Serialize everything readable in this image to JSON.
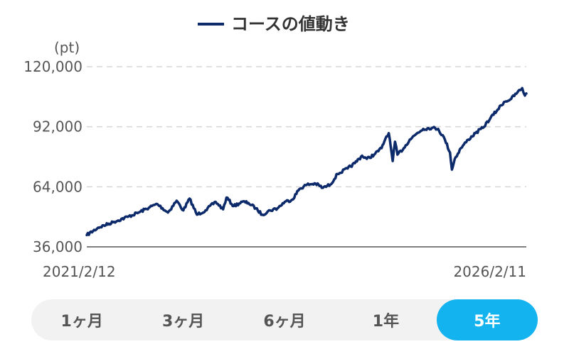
{
  "chart_data": {
    "type": "line",
    "legend": {
      "label": "コースの値動き",
      "placement": "top-center"
    },
    "y_unit": "(pt)",
    "ylim": [
      36000,
      120000
    ],
    "y_ticks": [
      {
        "value": 120000,
        "label": "120,000"
      },
      {
        "value": 92000,
        "label": "92,000"
      },
      {
        "value": 64000,
        "label": "64,000"
      },
      {
        "value": 36000,
        "label": "36,000"
      }
    ],
    "x_labels": {
      "start": "2021/2/12",
      "end": "2026/2/11"
    },
    "grid": "horizontal dashed",
    "series": [
      {
        "name": "コースの値動き",
        "color": "#0d2a6b",
        "points": [
          [
            "2021-02-12",
            41500
          ],
          [
            "2021-04-01",
            45000
          ],
          [
            "2021-06-01",
            47500
          ],
          [
            "2021-08-01",
            50000
          ],
          [
            "2021-09-15",
            52000
          ],
          [
            "2021-11-01",
            54500
          ],
          [
            "2021-12-01",
            56000
          ],
          [
            "2022-01-15",
            52000
          ],
          [
            "2022-02-20",
            57500
          ],
          [
            "2022-03-20",
            53000
          ],
          [
            "2022-04-15",
            58500
          ],
          [
            "2022-05-15",
            51000
          ],
          [
            "2022-06-20",
            53000
          ],
          [
            "2022-08-01",
            57000
          ],
          [
            "2022-09-01",
            53500
          ],
          [
            "2022-09-15",
            59000
          ],
          [
            "2022-10-15",
            55000
          ],
          [
            "2022-11-20",
            57000
          ],
          [
            "2022-12-15",
            56500
          ],
          [
            "2023-01-15",
            54000
          ],
          [
            "2023-02-10",
            51000
          ],
          [
            "2023-03-15",
            53000
          ],
          [
            "2023-04-15",
            54000
          ],
          [
            "2023-05-15",
            57000
          ],
          [
            "2023-06-15",
            58000
          ],
          [
            "2023-07-15",
            63000
          ],
          [
            "2023-08-15",
            65000
          ],
          [
            "2023-09-20",
            65500
          ],
          [
            "2023-10-20",
            63500
          ],
          [
            "2023-11-20",
            65000
          ],
          [
            "2023-12-20",
            70000
          ],
          [
            "2024-01-31",
            72500
          ],
          [
            "2024-03-01",
            75000
          ],
          [
            "2024-03-31",
            78500
          ],
          [
            "2024-04-20",
            77000
          ],
          [
            "2024-05-20",
            79000
          ],
          [
            "2024-06-20",
            82000
          ],
          [
            "2024-07-10",
            87500
          ],
          [
            "2024-07-20",
            89000
          ],
          [
            "2024-08-05",
            76000
          ],
          [
            "2024-08-15",
            85000
          ],
          [
            "2024-08-25",
            79000
          ],
          [
            "2024-09-20",
            82000
          ],
          [
            "2024-10-15",
            86000
          ],
          [
            "2024-11-15",
            89000
          ],
          [
            "2024-12-10",
            91000
          ],
          [
            "2025-01-15",
            91500
          ],
          [
            "2025-02-10",
            91000
          ],
          [
            "2025-03-10",
            86000
          ],
          [
            "2025-03-31",
            80000
          ],
          [
            "2025-04-08",
            72000
          ],
          [
            "2025-04-20",
            77000
          ],
          [
            "2025-05-15",
            82000
          ],
          [
            "2025-06-15",
            86000
          ],
          [
            "2025-07-15",
            89000
          ],
          [
            "2025-08-15",
            91500
          ],
          [
            "2025-09-15",
            96000
          ],
          [
            "2025-10-15",
            100000
          ],
          [
            "2025-11-10",
            103500
          ],
          [
            "2025-12-10",
            105000
          ],
          [
            "2026-01-05",
            108000
          ],
          [
            "2026-01-25",
            110000
          ],
          [
            "2026-02-05",
            106500
          ],
          [
            "2026-02-11",
            107500
          ]
        ]
      }
    ]
  },
  "period_tabs": [
    {
      "label": "1ヶ月",
      "active": false
    },
    {
      "label": "3ヶ月",
      "active": false
    },
    {
      "label": "6ヶ月",
      "active": false
    },
    {
      "label": "1年",
      "active": false
    },
    {
      "label": "5年",
      "active": true
    }
  ],
  "colors": {
    "line": "#0d2a6b",
    "active_tab": "#12b3ef",
    "tab_bg": "#f2f2f2"
  }
}
